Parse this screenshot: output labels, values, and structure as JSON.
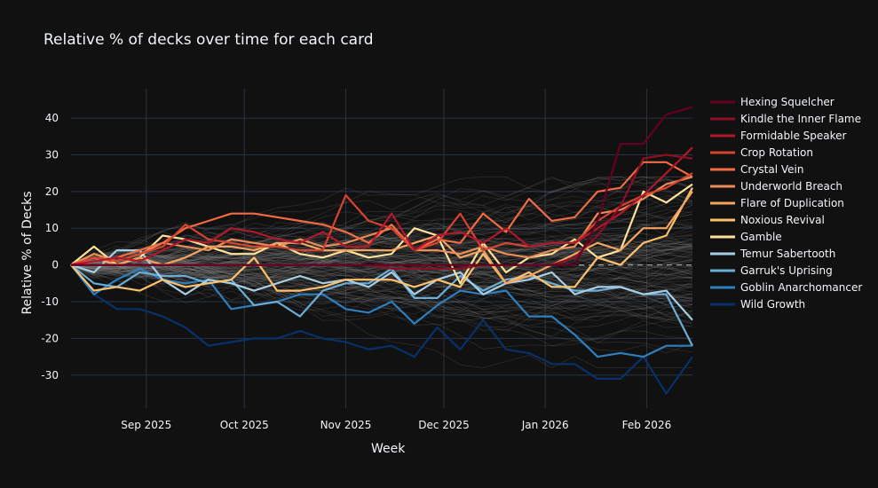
{
  "chart_data": {
    "type": "line",
    "title": "Relative  % of decks over time for each card",
    "xlabel": "Week",
    "ylabel": "Relative % of Decks",
    "ylim": [
      -39,
      48
    ],
    "xrange": [
      "2025-08-09",
      "2026-02-15"
    ],
    "yticks": [
      -30,
      -20,
      -10,
      0,
      10,
      20,
      30,
      40
    ],
    "xticks": [
      {
        "date": "2025-09-01",
        "label": "Sep 2025"
      },
      {
        "date": "2025-10-01",
        "label": "Oct 2025"
      },
      {
        "date": "2025-11-01",
        "label": "Nov 2025"
      },
      {
        "date": "2025-12-01",
        "label": "Dec 2025"
      },
      {
        "date": "2026-01-01",
        "label": "Jan 2026"
      },
      {
        "date": "2026-02-01",
        "label": "Feb 2026"
      }
    ],
    "zero_line": "dashed",
    "grid": true,
    "legend_position": "right",
    "background_series_note": "many thin gray lines for other cards",
    "x": [
      "2025-08-09",
      "2025-08-16",
      "2025-08-23",
      "2025-08-30",
      "2025-09-06",
      "2025-09-13",
      "2025-09-20",
      "2025-09-27",
      "2025-10-04",
      "2025-10-11",
      "2025-10-18",
      "2025-10-25",
      "2025-11-01",
      "2025-11-08",
      "2025-11-15",
      "2025-11-22",
      "2025-11-29",
      "2025-12-06",
      "2025-12-13",
      "2025-12-20",
      "2025-12-27",
      "2026-01-03",
      "2026-01-10",
      "2026-01-17",
      "2026-01-24",
      "2026-01-31",
      "2026-02-07",
      "2026-02-15"
    ],
    "series": [
      {
        "name": "Hexing Squelcher",
        "color": "#67001f",
        "values": [
          0,
          0,
          0,
          0,
          0,
          0,
          0,
          0,
          0,
          0,
          0,
          0,
          0,
          0,
          0,
          0,
          0,
          0,
          0,
          0,
          0,
          0,
          0,
          12,
          33,
          33,
          41,
          43
        ]
      },
      {
        "name": "Kindle the Inner Flame",
        "color": "#900d26",
        "values": [
          0,
          0,
          0,
          0,
          0,
          0,
          0,
          0,
          0,
          0,
          0,
          0,
          0,
          0,
          -1,
          -1,
          -1,
          -1,
          0,
          0,
          0,
          0,
          2,
          8,
          16,
          29,
          30,
          29
        ]
      },
      {
        "name": "Formidable Speaker",
        "color": "#b2182b",
        "values": [
          0,
          1,
          2,
          1,
          4,
          7,
          6,
          10,
          9,
          7,
          6,
          9,
          5,
          5,
          14,
          4,
          8,
          9,
          6,
          10,
          5,
          6,
          6,
          10,
          14,
          19,
          25,
          32
        ]
      },
      {
        "name": "Crop Rotation",
        "color": "#d6432f",
        "values": [
          0,
          2,
          1,
          3,
          5,
          11,
          7,
          6,
          5,
          5,
          4,
          4,
          19,
          12,
          10,
          4,
          6,
          14,
          4,
          6,
          5,
          6,
          6,
          12,
          16,
          19,
          21,
          25
        ]
      },
      {
        "name": "Crystal Vein",
        "color": "#f26b43",
        "values": [
          0,
          1,
          2,
          4,
          6,
          10,
          12,
          14,
          14,
          13,
          12,
          11,
          9,
          6,
          11,
          4,
          7,
          6,
          14,
          9,
          18,
          12,
          13,
          20,
          21,
          28,
          28,
          24
        ]
      },
      {
        "name": "Underworld Breach",
        "color": "#ec8d59",
        "values": [
          0,
          3,
          1,
          3,
          6,
          5,
          4,
          7,
          6,
          5,
          7,
          5,
          6,
          8,
          10,
          4,
          4,
          3,
          5,
          3,
          2,
          4,
          5,
          14,
          15,
          18,
          22,
          24
        ]
      },
      {
        "name": "Flare of Duplication",
        "color": "#f4a460",
        "values": [
          0,
          2,
          0,
          2,
          0,
          2,
          5,
          5,
          4,
          6,
          6,
          4,
          4,
          4,
          4,
          6,
          8,
          2,
          4,
          -5,
          -3,
          0,
          3,
          6,
          4,
          10,
          10,
          20
        ]
      },
      {
        "name": "Noxious Revival",
        "color": "#fdc16d",
        "values": [
          0,
          -7,
          -6,
          -7,
          -4,
          -6,
          -5,
          -4,
          2,
          -7,
          -7,
          -6,
          -4,
          -4,
          -4,
          -6,
          -4,
          -6,
          3,
          -5,
          -2,
          -6,
          -6,
          2,
          0,
          6,
          8,
          21
        ]
      },
      {
        "name": "Gamble",
        "color": "#fde29a",
        "values": [
          0,
          5,
          0,
          2,
          8,
          7,
          5,
          3,
          3,
          6,
          3,
          2,
          4,
          2,
          3,
          10,
          8,
          -5,
          6,
          -2,
          2,
          3,
          7,
          2,
          4,
          20,
          17,
          22
        ]
      },
      {
        "name": "Temur Sabertooth",
        "color": "#a8cee5",
        "values": [
          0,
          -2,
          4,
          4,
          -4,
          -8,
          -4,
          -5,
          -7,
          -5,
          -3,
          -5,
          -4,
          -6,
          -2,
          -8,
          -4,
          -2,
          -8,
          -5,
          -4,
          -2,
          -8,
          -6,
          -6,
          -8,
          -7,
          -15
        ]
      },
      {
        "name": "Garruk's Uprising",
        "color": "#6aaed6",
        "values": [
          0,
          -5,
          -6,
          -2,
          -3,
          -3,
          -5,
          -4,
          -11,
          -10,
          -14,
          -7,
          -5,
          -5,
          -1,
          -9,
          -9,
          -3,
          -7,
          -4,
          -3,
          -5,
          -7,
          -7,
          -6,
          -8,
          -8,
          -22
        ]
      },
      {
        "name": "Goblin Anarchomancer",
        "color": "#2f7fbf",
        "values": [
          0,
          -8,
          -4,
          -1,
          -4,
          -5,
          -4,
          -12,
          -11,
          -10,
          -8,
          -8,
          -12,
          -13,
          -10,
          -16,
          -11,
          -7,
          -8,
          -7,
          -14,
          -14,
          -19,
          -25,
          -24,
          -25,
          -22,
          -22
        ]
      },
      {
        "name": "Wild Growth",
        "color": "#08306b",
        "values": [
          0,
          -8,
          -12,
          -12,
          -14,
          -17,
          -22,
          -21,
          -20,
          -20,
          -18,
          -20,
          -21,
          -23,
          -22,
          -25,
          -17,
          -23,
          -15,
          -23,
          -24,
          -27,
          -27,
          -31,
          -31,
          -25,
          -35,
          -25
        ]
      }
    ]
  }
}
